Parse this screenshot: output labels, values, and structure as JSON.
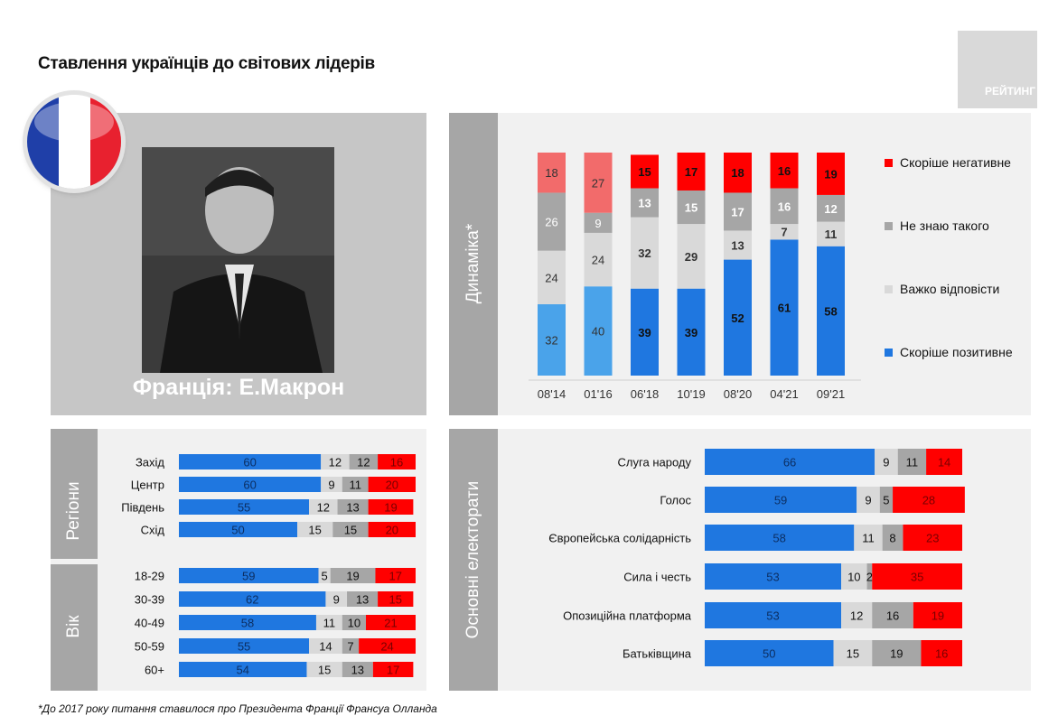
{
  "title": "Ставлення українців до світових лідерів",
  "brand": "РЕЙТИНГ",
  "photo_caption": "Франція: Е.Макрон",
  "footnote": "*До 2017 року питання ставилося про Президента Франції Франсуа Олланда",
  "tabs": {
    "dynamics": "Динаміка*",
    "regions": "Регіони",
    "age": "Вік",
    "electorates": "Основні електорати"
  },
  "colors": {
    "positive": "#1f77e0",
    "positive_old": "#4aa3ea",
    "dont_know": "#a6a6a6",
    "hard": "#d9d9d9",
    "negative": "#ff0000",
    "negative_old": "#f26b6b",
    "panel": "#f1f1f1",
    "tab": "#a6a6a6"
  },
  "chart_data": [
    {
      "type": "bar",
      "stacked": true,
      "categories": [
        "08'14",
        "01'16",
        "06'18",
        "10'19",
        "08'20",
        "04'21",
        "09'21"
      ],
      "series": [
        {
          "name": "Скоріше позитивне",
          "values": [
            32,
            40,
            39,
            39,
            52,
            61,
            58
          ]
        },
        {
          "name": "Важко відповісти",
          "values": [
            24,
            24,
            32,
            29,
            13,
            7,
            11
          ]
        },
        {
          "name": "Не знаю такого",
          "values": [
            26,
            9,
            13,
            15,
            17,
            16,
            12
          ]
        },
        {
          "name": "Скоріше негативне",
          "values": [
            18,
            27,
            15,
            17,
            18,
            16,
            19
          ]
        }
      ],
      "legend": [
        "Скоріше негативне",
        "Не знаю такого",
        "Важко відповісти",
        "Скоріше позитивне"
      ],
      "legend_position": "right"
    },
    {
      "type": "bar",
      "orientation": "horizontal",
      "stacked": true,
      "groups": [
        {
          "label": "Регіони",
          "categories": [
            "Захід",
            "Центр",
            "Південь",
            "Схід"
          ],
          "values": [
            [
              60,
              12,
              12,
              16
            ],
            [
              60,
              9,
              11,
              20
            ],
            [
              55,
              12,
              13,
              19
            ],
            [
              50,
              15,
              15,
              20
            ]
          ]
        },
        {
          "label": "Вік",
          "categories": [
            "18-29",
            "30-39",
            "40-49",
            "50-59",
            "60+"
          ],
          "values": [
            [
              59,
              5,
              19,
              17
            ],
            [
              62,
              9,
              13,
              15
            ],
            [
              58,
              11,
              10,
              21
            ],
            [
              55,
              14,
              7,
              24
            ],
            [
              54,
              15,
              13,
              17
            ]
          ]
        }
      ],
      "segment_order": [
        "Скоріше позитивне",
        "Важко відповісти",
        "Не знаю такого",
        "Скоріше негативне"
      ]
    },
    {
      "type": "bar",
      "orientation": "horizontal",
      "stacked": true,
      "group_label": "Основні електорати",
      "categories": [
        "Слуга народу",
        "Голос",
        "Європейська солідарність",
        "Сила і честь",
        "Опозиційна платформа",
        "Батьківщина"
      ],
      "values": [
        [
          66,
          9,
          11,
          14
        ],
        [
          59,
          9,
          5,
          28
        ],
        [
          58,
          11,
          8,
          23
        ],
        [
          53,
          10,
          2,
          35
        ],
        [
          53,
          12,
          16,
          19
        ],
        [
          50,
          15,
          19,
          16
        ]
      ],
      "segment_order": [
        "Скоріше позитивне",
        "Важко відповісти",
        "Не знаю такого",
        "Скоріше негативне"
      ]
    }
  ]
}
